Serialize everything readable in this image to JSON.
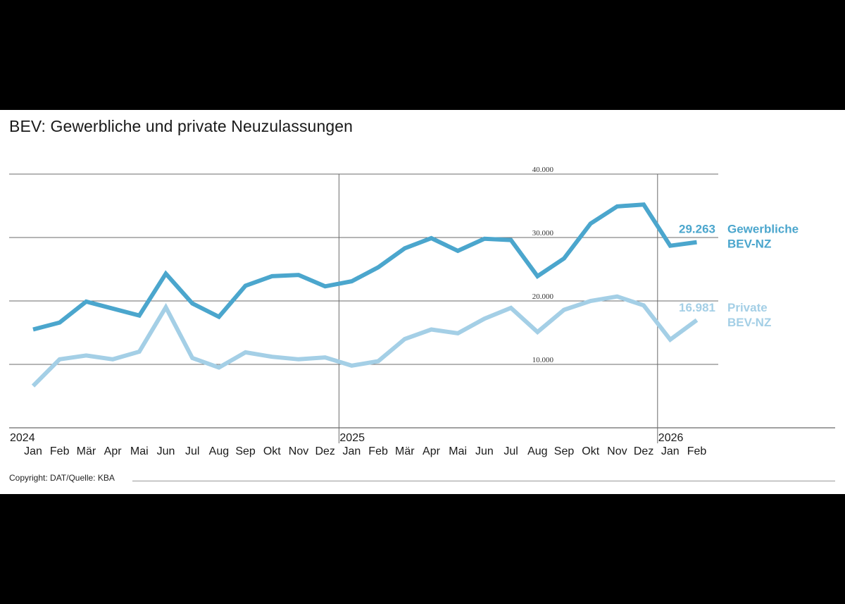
{
  "title": "BEV: Gewerbliche und private Neuzulassungen",
  "copyright": "Copyright: DAT/Quelle: KBA",
  "colors": {
    "commercial": "#4ba6cd",
    "private": "#a4cfe6",
    "grid": "#6b6b6b",
    "text": "#1a1a1a"
  },
  "chart_data": {
    "type": "line",
    "title": "BEV: Gewerbliche und private Neuzulassungen",
    "xlabel": "",
    "ylabel": "",
    "ylim": [
      0,
      40000
    ],
    "y_ticks": [
      "10.000",
      "20.000",
      "30.000",
      "40.000"
    ],
    "y_tick_values": [
      10000,
      20000,
      30000,
      40000
    ],
    "years": [
      {
        "label": "2024",
        "index": 0
      },
      {
        "label": "2025",
        "index": 12
      },
      {
        "label": "2026",
        "index": 24
      }
    ],
    "categories": [
      "Jan",
      "Feb",
      "Mär",
      "Apr",
      "Mai",
      "Jun",
      "Jul",
      "Aug",
      "Sep",
      "Okt",
      "Nov",
      "Dez",
      "Jan",
      "Feb",
      "Mär",
      "Apr",
      "Mai",
      "Jun",
      "Jul",
      "Aug",
      "Sep",
      "Okt",
      "Nov",
      "Dez",
      "Jan",
      "Feb"
    ],
    "series": [
      {
        "key": "commercial",
        "name_lines": [
          "Gewerbliche",
          "BEV-NZ"
        ],
        "last_label": "29.263",
        "values": [
          15500,
          16600,
          19900,
          18800,
          17700,
          24300,
          19600,
          17500,
          22400,
          23900,
          24100,
          22300,
          23100,
          25300,
          28300,
          29900,
          27900,
          29800,
          29600,
          23900,
          26700,
          32200,
          34900,
          35200,
          28700,
          29263
        ]
      },
      {
        "key": "private",
        "name_lines": [
          "Private",
          "BEV-NZ"
        ],
        "last_label": "16.981",
        "values": [
          6600,
          10800,
          11400,
          10800,
          12000,
          19000,
          11000,
          9500,
          11900,
          11200,
          10800,
          11100,
          9800,
          10500,
          14000,
          15500,
          14900,
          17200,
          18900,
          15100,
          18600,
          20000,
          20700,
          19300,
          13900,
          16981
        ]
      }
    ]
  }
}
